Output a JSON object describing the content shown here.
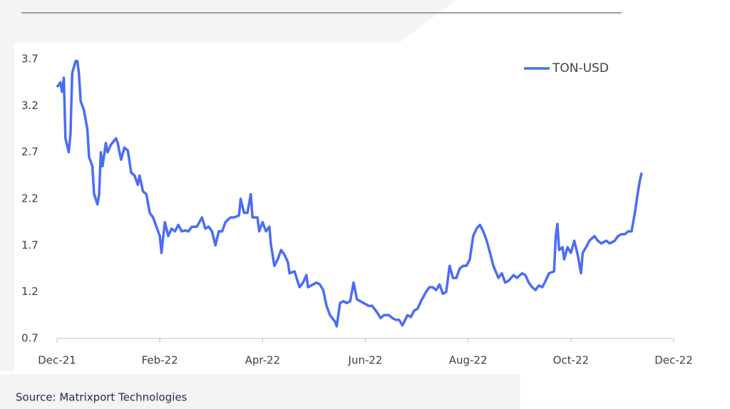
{
  "chart_data": {
    "type": "line",
    "source": "Source: Matrixport Technologies",
    "x": [
      0,
      2,
      3,
      4,
      5,
      7,
      8,
      9,
      11,
      12,
      13,
      14,
      16,
      18,
      19,
      21,
      22,
      24,
      25,
      26,
      27,
      29,
      30,
      32,
      35,
      36,
      38,
      40,
      42,
      44,
      46,
      48,
      49,
      51,
      53,
      55,
      57,
      59,
      61,
      62,
      64,
      66,
      68,
      70,
      72,
      74,
      76,
      78,
      80,
      83,
      86,
      88,
      90,
      92,
      94,
      96,
      98,
      100,
      103,
      105,
      108,
      109,
      111,
      113,
      115,
      116,
      119,
      120,
      122,
      124,
      126,
      127,
      129,
      131,
      133,
      135,
      137,
      138,
      141,
      143,
      144,
      146,
      148,
      149,
      152,
      154,
      156,
      158,
      160,
      162,
      165,
      166,
      168,
      170,
      172,
      174,
      176,
      178,
      180,
      182,
      185,
      187,
      190,
      192,
      194,
      197,
      199,
      201,
      203,
      205,
      208,
      210,
      212,
      214,
      216,
      219,
      221,
      223,
      225,
      227,
      229,
      231,
      233,
      235,
      237,
      239,
      241,
      243,
      245,
      247,
      249,
      251,
      253,
      255,
      257,
      259,
      262,
      264,
      266,
      268,
      271,
      273,
      276,
      278,
      280,
      282,
      284,
      286,
      288,
      290,
      292,
      295,
      296,
      297,
      298,
      300,
      301,
      303,
      305,
      307,
      309,
      311,
      312,
      314,
      316,
      319,
      321,
      323,
      326,
      328,
      331,
      333,
      335,
      337,
      339,
      341,
      343,
      345,
      346,
      347
    ],
    "series": [
      {
        "name": "TON-USD",
        "color": "#4b6cf5",
        "values": [
          3.4,
          3.45,
          3.35,
          3.5,
          2.85,
          2.7,
          2.9,
          3.55,
          3.68,
          3.68,
          3.55,
          3.25,
          3.15,
          2.95,
          2.65,
          2.55,
          2.25,
          2.14,
          2.25,
          2.7,
          2.55,
          2.8,
          2.7,
          2.78,
          2.85,
          2.8,
          2.62,
          2.75,
          2.72,
          2.48,
          2.45,
          2.35,
          2.45,
          2.28,
          2.25,
          2.05,
          2.0,
          1.9,
          1.8,
          1.62,
          1.95,
          1.8,
          1.88,
          1.85,
          1.92,
          1.85,
          1.86,
          1.85,
          1.9,
          1.9,
          2.0,
          1.88,
          1.9,
          1.85,
          1.7,
          1.85,
          1.85,
          1.95,
          2.0,
          2.0,
          2.02,
          2.2,
          2.05,
          2.05,
          2.25,
          2.0,
          2.0,
          1.85,
          1.95,
          1.85,
          1.9,
          1.7,
          1.48,
          1.55,
          1.65,
          1.6,
          1.52,
          1.4,
          1.42,
          1.3,
          1.25,
          1.3,
          1.38,
          1.25,
          1.28,
          1.3,
          1.28,
          1.22,
          1.05,
          0.95,
          0.88,
          0.83,
          1.08,
          1.1,
          1.08,
          1.1,
          1.3,
          1.12,
          1.1,
          1.08,
          1.05,
          1.05,
          0.98,
          0.92,
          0.95,
          0.95,
          0.92,
          0.9,
          0.9,
          0.84,
          0.95,
          0.93,
          1.0,
          1.02,
          1.1,
          1.2,
          1.25,
          1.25,
          1.22,
          1.28,
          1.18,
          1.2,
          1.48,
          1.35,
          1.35,
          1.45,
          1.48,
          1.48,
          1.55,
          1.8,
          1.88,
          1.92,
          1.85,
          1.75,
          1.62,
          1.48,
          1.35,
          1.4,
          1.3,
          1.32,
          1.38,
          1.35,
          1.4,
          1.38,
          1.3,
          1.25,
          1.22,
          1.27,
          1.25,
          1.32,
          1.4,
          1.42,
          1.8,
          1.93,
          1.65,
          1.68,
          1.55,
          1.68,
          1.62,
          1.75,
          1.6,
          1.4,
          1.62,
          1.68,
          1.75,
          1.8,
          1.75,
          1.72,
          1.75,
          1.72,
          1.75,
          1.8,
          1.82,
          1.82,
          1.85,
          1.85,
          2.05,
          2.3,
          2.4,
          2.48
        ]
      }
    ],
    "xlim": [
      0,
      366
    ],
    "xticks": [
      {
        "value": 0,
        "label": "Dec-21"
      },
      {
        "value": 61,
        "label": "Feb-22"
      },
      {
        "value": 122,
        "label": "Apr-22"
      },
      {
        "value": 183,
        "label": "Jun-22"
      },
      {
        "value": 244,
        "label": "Aug-22"
      },
      {
        "value": 305,
        "label": "Oct-22"
      },
      {
        "value": 366,
        "label": "Dec-22"
      }
    ],
    "ylim": [
      0.7,
      3.7
    ],
    "yticks": [
      0.7,
      1.2,
      1.7,
      2.2,
      2.7,
      3.2,
      3.7
    ],
    "grid": false,
    "legend": "top-right"
  }
}
